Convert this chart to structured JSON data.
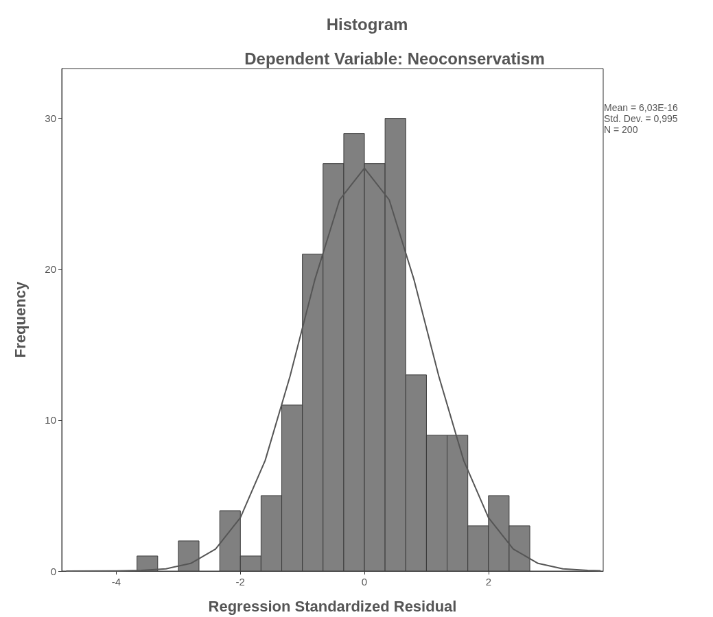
{
  "chart_data": {
    "type": "histogram",
    "title": "Histogram",
    "subtitle": "Dependent Variable: Neoconservatism",
    "xlabel": "Regression Standardized Residual",
    "ylabel": "Frequency",
    "annotations": [
      "Mean = 6,03E-16",
      "Std. Dev. = 0,995",
      "N = 200"
    ],
    "xlim": [
      -4.88,
      3.85
    ],
    "xticks": [
      -4,
      -2,
      0,
      2
    ],
    "ylim": [
      0,
      33.3
    ],
    "yticks": [
      0,
      10,
      20,
      30
    ],
    "grid": false,
    "series": [
      {
        "type": "histogram",
        "color": "#808080",
        "bins": [
          -3.667,
          -3.333,
          -3,
          -2.667,
          -2.333,
          -2,
          -1.667,
          -1.333,
          -1,
          -0.667,
          -0.333,
          0,
          0.333,
          0.667,
          1,
          1.333,
          1.667,
          2,
          2.333,
          2.667
        ],
        "values": [
          1,
          0,
          2,
          0,
          4,
          1,
          5,
          11,
          21,
          27,
          29,
          27,
          30,
          13,
          9,
          9,
          3,
          5,
          3
        ]
      },
      {
        "type": "line",
        "color": "#555555",
        "marker": "none",
        "line_style": "solid",
        "x": [
          -4.8,
          -4.0,
          -3.6,
          -3.2,
          -2.8,
          -2.4,
          -2.0,
          -1.6,
          -1.2,
          -0.8,
          -0.4,
          0,
          0.4,
          0.8,
          1.2,
          1.6,
          2.0,
          2.4,
          2.8,
          3.2,
          3.6,
          3.8
        ],
        "values": [
          0,
          0.01,
          0.04,
          0.15,
          0.51,
          1.46,
          3.54,
          7.33,
          12.9,
          19.3,
          24.6,
          26.7,
          24.6,
          19.3,
          12.9,
          7.33,
          3.54,
          1.46,
          0.51,
          0.15,
          0.04,
          0.02
        ]
      }
    ]
  }
}
